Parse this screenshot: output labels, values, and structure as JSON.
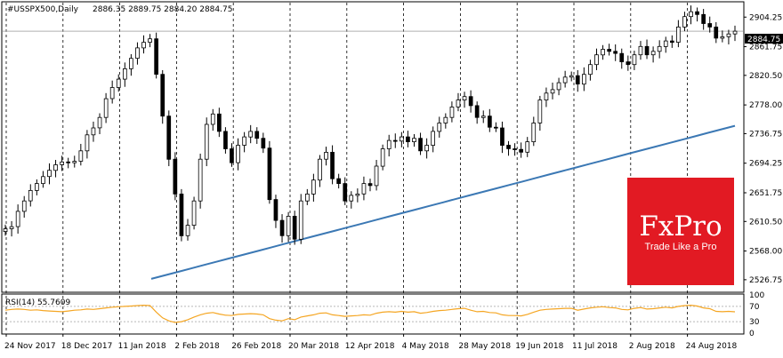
{
  "header": {
    "symbol": "#USSPX500,Daily",
    "ohlc": "2886.35 2889.75 2884.20 2884.75"
  },
  "rsi": {
    "label": "RSI(14) 55.7609",
    "levels_labels": [
      "100",
      "70",
      "30",
      "0"
    ]
  },
  "price_label": "2884.75",
  "logo": {
    "brand": "FxPro",
    "tagline": "Trade Like a Pro",
    "color": "#e21a23"
  },
  "colors": {
    "candle": "#000000",
    "ma": "#3b78b4",
    "rsi": "#f5a623",
    "level_line": "#b8b8b8"
  },
  "chart_data": {
    "type": "line",
    "title": "#USSPX500,Daily",
    "series": [
      {
        "name": "",
        "values": [
          2600,
          2603,
          2625,
          2640,
          2655,
          2665,
          2675,
          2684,
          2692,
          2696,
          2695,
          2697,
          2712,
          2735,
          2745,
          2760,
          2787,
          2803,
          2815,
          2830,
          2845,
          2860,
          2868,
          2873,
          2822,
          2762,
          2700,
          2650,
          2590,
          2605,
          2640,
          2700,
          2750,
          2765,
          2740,
          2715,
          2695,
          2720,
          2732,
          2740,
          2730,
          2716,
          2642,
          2612,
          2590,
          2618,
          2585,
          2640,
          2650,
          2670,
          2700,
          2710,
          2672,
          2665,
          2640,
          2648,
          2650,
          2665,
          2662,
          2690,
          2715,
          2727,
          2726,
          2732,
          2725,
          2730,
          2712,
          2720,
          2740,
          2752,
          2760,
          2775,
          2785,
          2790,
          2777,
          2760,
          2762,
          2746,
          2745,
          2720,
          2715,
          2714,
          2710,
          2725,
          2752,
          2785,
          2795,
          2800,
          2810,
          2818,
          2820,
          2808,
          2822,
          2836,
          2850,
          2858,
          2855,
          2852,
          2840,
          2836,
          2850,
          2862,
          2850,
          2855,
          2862,
          2870,
          2868,
          2890,
          2905,
          2912,
          2908,
          2895,
          2890,
          2874,
          2876,
          2880,
          2884
        ]
      },
      {
        "name": "",
        "values": [
          2528,
          2533,
          2538,
          2543,
          2548,
          2553,
          2558,
          2563,
          2568,
          2573,
          2578,
          2583,
          2588,
          2593,
          2598,
          2603,
          2608,
          2613,
          2618,
          2623,
          2628,
          2633,
          2638,
          2643,
          2648,
          2653,
          2658,
          2663,
          2668,
          2673,
          2678,
          2683,
          2688,
          2693,
          2698,
          2703,
          2708,
          2713,
          2718,
          2723,
          2728,
          2733,
          2738,
          2743,
          2748
        ]
      }
    ],
    "rsi_values": [
      60,
      62,
      63,
      62,
      60,
      61,
      59,
      58,
      57,
      56,
      58,
      60,
      61,
      63,
      62,
      64,
      66,
      68,
      69,
      70,
      71,
      72,
      73,
      72,
      55,
      40,
      32,
      28,
      30,
      35,
      42,
      48,
      52,
      54,
      50,
      47,
      46,
      49,
      50,
      51,
      50,
      48,
      38,
      34,
      32,
      38,
      35,
      42,
      45,
      48,
      52,
      53,
      48,
      46,
      44,
      45,
      46,
      48,
      47,
      52,
      55,
      56,
      55,
      57,
      55,
      56,
      52,
      54,
      57,
      59,
      60,
      62,
      64,
      65,
      60,
      56,
      57,
      54,
      53,
      48,
      46,
      46,
      45,
      49,
      55,
      60,
      62,
      63,
      64,
      65,
      65,
      60,
      63,
      66,
      68,
      69,
      67,
      66,
      62,
      61,
      65,
      67,
      63,
      64,
      66,
      68,
      66,
      70,
      72,
      73,
      71,
      66,
      64,
      57,
      56,
      57,
      55.76
    ],
    "ylim": [
      2510,
      2925
    ],
    "y_ticks": [
      "2904.25",
      "2861.75",
      "2820.50",
      "2778.00",
      "2736.75",
      "2694.25",
      "2651.75",
      "2610.50",
      "2568.00",
      "2526.75"
    ],
    "x_ticks": [
      "24 Nov 2017",
      "18 Dec 2017",
      "11 Jan 2018",
      "2 Feb 2018",
      "26 Feb 2018",
      "20 Mar 2018",
      "12 Apr 2018",
      "4 May 2018",
      "28 May 2018",
      "19 Jun 2018",
      "11 Jul 2018",
      "2 Aug 2018",
      "24 Aug 2018"
    ],
    "rsi_ylim": [
      0,
      100
    ],
    "grid": true,
    "legend": "none"
  }
}
